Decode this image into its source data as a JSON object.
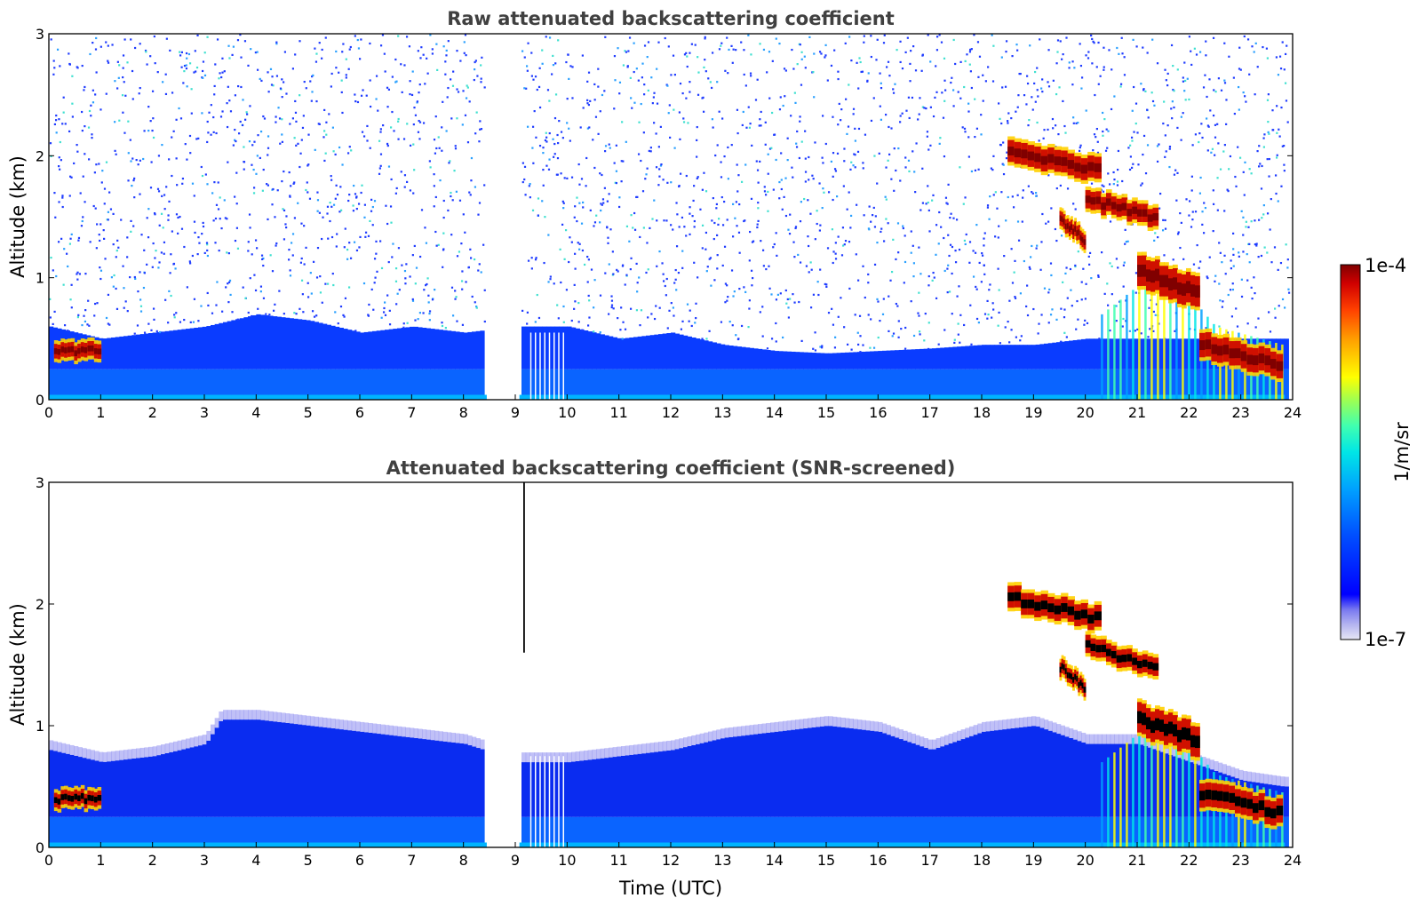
{
  "colors": {
    "jet_stops": [
      "#e6e6f5",
      "#b4b4f0",
      "#7878f0",
      "#0000ff",
      "#0050ff",
      "#00a0ff",
      "#00e6e6",
      "#40ffb0",
      "#a0ff50",
      "#ffff00",
      "#ffa000",
      "#ff4000",
      "#d00000",
      "#800000"
    ]
  },
  "chart_data": [
    {
      "type": "heatmap",
      "title": "Raw attenuated backscattering coefficient",
      "xlabel": "",
      "ylabel": "Altitude (km)",
      "xlim": [
        0,
        24
      ],
      "ylim": [
        0,
        3
      ],
      "x_ticks": [
        "0",
        "1",
        "2",
        "3",
        "4",
        "5",
        "6",
        "7",
        "8",
        "9",
        "10",
        "11",
        "12",
        "13",
        "14",
        "15",
        "16",
        "17",
        "18",
        "19",
        "20",
        "21",
        "22",
        "23",
        "24"
      ],
      "y_ticks": [
        "0",
        "1",
        "2",
        "3"
      ],
      "data_gap_utc": [
        8.45,
        9.08
      ],
      "boundary_layer_top_km": [
        [
          0,
          0.6
        ],
        [
          1,
          0.5
        ],
        [
          2,
          0.55
        ],
        [
          3,
          0.6
        ],
        [
          4,
          0.7
        ],
        [
          5,
          0.65
        ],
        [
          6,
          0.55
        ],
        [
          7,
          0.6
        ],
        [
          8,
          0.55
        ],
        [
          9,
          0.6
        ],
        [
          10,
          0.6
        ],
        [
          11,
          0.5
        ],
        [
          12,
          0.55
        ],
        [
          13,
          0.45
        ],
        [
          14,
          0.4
        ],
        [
          15,
          0.38
        ],
        [
          16,
          0.4
        ],
        [
          17,
          0.42
        ],
        [
          18,
          0.45
        ],
        [
          19,
          0.45
        ],
        [
          20,
          0.5
        ],
        [
          21,
          0.5
        ],
        [
          22,
          0.5
        ],
        [
          23,
          0.5
        ],
        [
          24,
          0.5
        ]
      ],
      "cloud_layers": [
        {
          "x0": 0.1,
          "x1": 1.0,
          "y": 0.4,
          "h": 0.12
        },
        {
          "x0": 18.5,
          "x1": 20.3,
          "y": 2.05,
          "h": 0.18
        },
        {
          "x0": 19.5,
          "x1": 20.0,
          "y": 1.48,
          "h": 0.12
        },
        {
          "x0": 20.0,
          "x1": 21.4,
          "y": 1.65,
          "h": 0.15
        },
        {
          "x0": 21.0,
          "x1": 22.2,
          "y": 1.05,
          "h": 0.25
        },
        {
          "x0": 22.2,
          "x1": 23.8,
          "y": 0.45,
          "h": 0.2
        }
      ]
    },
    {
      "type": "heatmap",
      "title": "Attenuated backscattering coefficient (SNR-screened)",
      "xlabel": "Time (UTC)",
      "ylabel": "Altitude (km)",
      "xlim": [
        0,
        24
      ],
      "ylim": [
        0,
        3
      ],
      "x_ticks": [
        "0",
        "1",
        "2",
        "3",
        "4",
        "5",
        "6",
        "7",
        "8",
        "9",
        "10",
        "11",
        "12",
        "13",
        "14",
        "15",
        "16",
        "17",
        "18",
        "19",
        "20",
        "21",
        "22",
        "23",
        "24"
      ],
      "y_ticks": [
        "0",
        "1",
        "2",
        "3"
      ],
      "data_gap_utc": [
        8.45,
        9.08
      ],
      "signal_top_km": [
        [
          0,
          0.8
        ],
        [
          1,
          0.7
        ],
        [
          2,
          0.75
        ],
        [
          3,
          0.85
        ],
        [
          3.3,
          1.05
        ],
        [
          4,
          1.05
        ],
        [
          5,
          1.0
        ],
        [
          6,
          0.95
        ],
        [
          7,
          0.9
        ],
        [
          8,
          0.85
        ],
        [
          9.1,
          0.7
        ],
        [
          10,
          0.7
        ],
        [
          11,
          0.75
        ],
        [
          12,
          0.8
        ],
        [
          13,
          0.9
        ],
        [
          14,
          0.95
        ],
        [
          15,
          1.0
        ],
        [
          16,
          0.95
        ],
        [
          17,
          0.8
        ],
        [
          18,
          0.95
        ],
        [
          19,
          1.0
        ],
        [
          20,
          0.85
        ],
        [
          21,
          0.85
        ],
        [
          22,
          0.7
        ],
        [
          23,
          0.55
        ],
        [
          23.8,
          0.5
        ]
      ],
      "cloud_layers": [
        {
          "x0": 0.1,
          "x1": 1.0,
          "y": 0.4,
          "h": 0.12
        },
        {
          "x0": 18.5,
          "x1": 20.3,
          "y": 2.05,
          "h": 0.18
        },
        {
          "x0": 19.5,
          "x1": 20.0,
          "y": 1.48,
          "h": 0.12
        },
        {
          "x0": 20.0,
          "x1": 21.4,
          "y": 1.65,
          "h": 0.15
        },
        {
          "x0": 21.0,
          "x1": 22.2,
          "y": 1.05,
          "h": 0.25
        },
        {
          "x0": 22.2,
          "x1": 23.8,
          "y": 0.45,
          "h": 0.2
        }
      ]
    }
  ],
  "colorbar": {
    "label": "1/m/sr",
    "max_label": "1e-4",
    "min_label": "1e-7"
  }
}
